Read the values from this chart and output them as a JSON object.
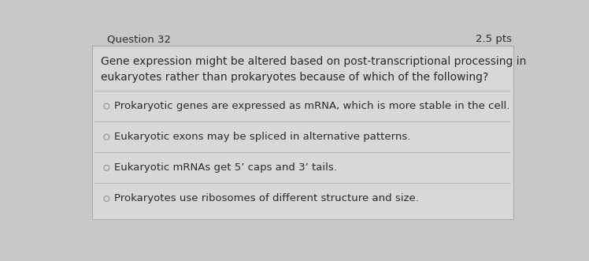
{
  "header_left": "Question 32",
  "header_right": "2.5 pts",
  "question": "Gene expression might be altered based on post-transcriptional processing in\neukaryotes rather than prokaryotes because of which of the following?",
  "options": [
    "Prokaryotic genes are expressed as mRNA, which is more stable in the cell.",
    "Eukaryotic exons may be spliced in alternative patterns.",
    "Eukaryotic mRNAs get 5’ caps and 3’ tails.",
    "Prokaryotes use ribosomes of different structure and size."
  ],
  "bg_color": "#c8c8c8",
  "card_color": "#d8d8d8",
  "header_bg": "#c8c8c8",
  "text_color": "#2a2a2a",
  "header_text_color": "#2a2a2a",
  "divider_color": "#b8b8b8",
  "radio_color": "#999999",
  "font_size_header": 9.5,
  "font_size_question": 10,
  "font_size_option": 9.5
}
